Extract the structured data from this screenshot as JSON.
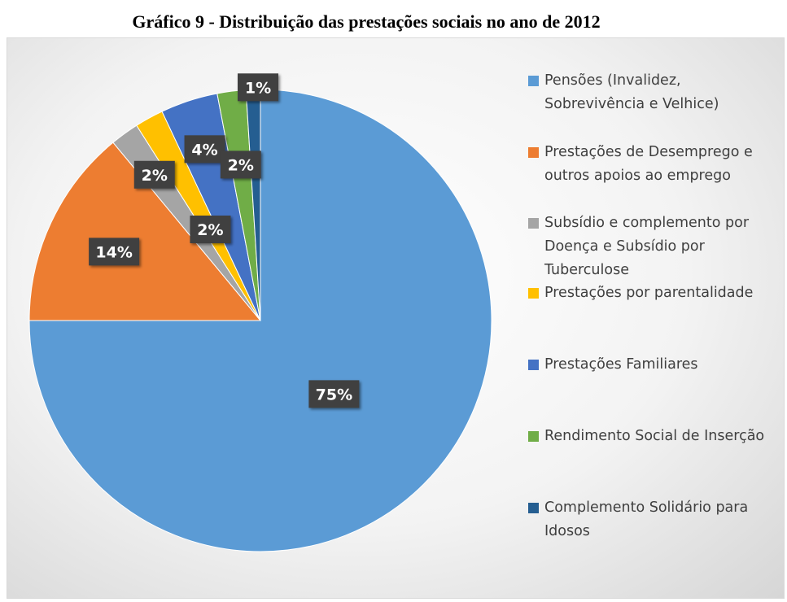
{
  "title": "Gráfico 9 - Distribuição das prestações sociais no ano de 2012",
  "chart_data": {
    "type": "pie",
    "title": "Gráfico 9 - Distribuição das prestações sociais no ano de 2012",
    "start_angle_deg": 0,
    "direction": "clockwise",
    "slices": [
      {
        "label": "Pensões (Invalidez, Sobrevivência e Velhice)",
        "value": 75,
        "display": "75%",
        "color": "#5B9BD5"
      },
      {
        "label": "Prestações de Desemprego e outros apoios ao emprego",
        "value": 14,
        "display": "14%",
        "color": "#ED7D31"
      },
      {
        "label": "Subsídio e complemento por Doença e Subsídio por Tuberculose",
        "value": 2,
        "display": "2%",
        "color": "#A5A5A5"
      },
      {
        "label": "Prestações por parentalidade",
        "value": 2,
        "display": "2%",
        "color": "#FFC000"
      },
      {
        "label": "Prestações Familiares",
        "value": 4,
        "display": "4%",
        "color": "#4472C4"
      },
      {
        "label": "Rendimento Social de Inserção",
        "value": 2,
        "display": "2%",
        "color": "#70AD47"
      },
      {
        "label": "Complemento Solidário para Idosos",
        "value": 1,
        "display": "1%",
        "color": "#255E91"
      }
    ],
    "legend_position": "right"
  }
}
